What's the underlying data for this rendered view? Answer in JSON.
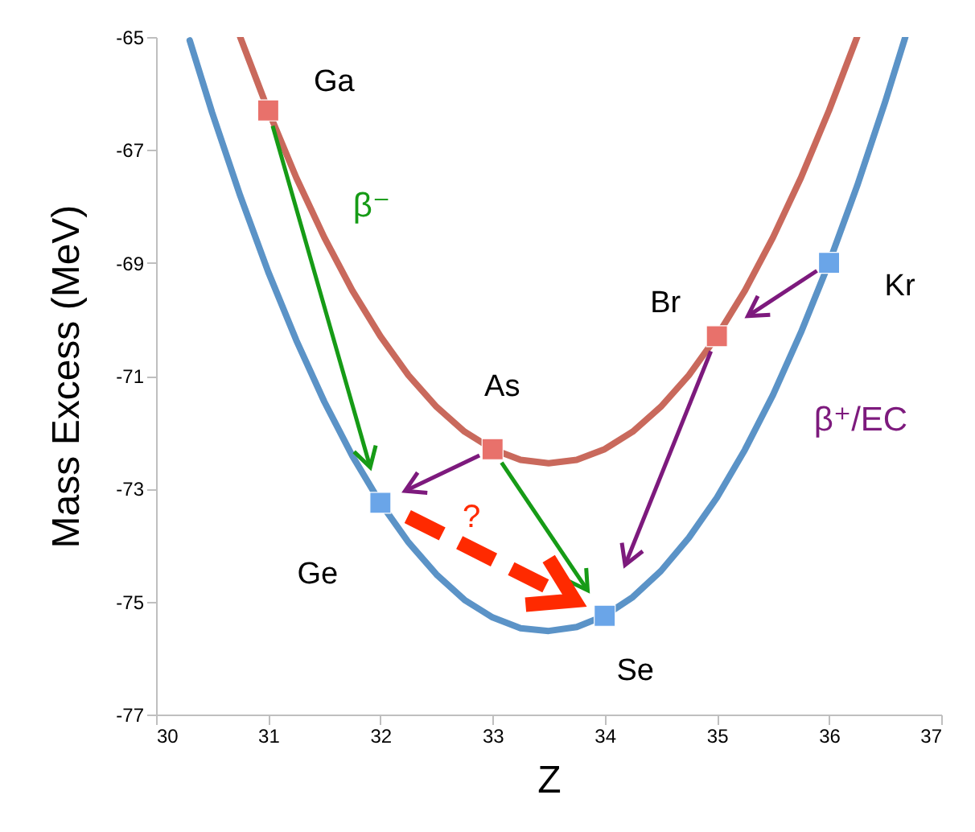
{
  "chart_data": {
    "type": "line",
    "xlabel": "Z",
    "ylabel": "Mass Excess (MeV)",
    "xlim": [
      30,
      37
    ],
    "xticks": [
      30,
      31,
      32,
      33,
      34,
      35,
      36,
      37
    ],
    "ylim": [
      -77,
      -65
    ],
    "yticks": [
      -77,
      -75,
      -73,
      -71,
      -69,
      -67,
      -65
    ],
    "series": [
      {
        "type": "line",
        "color": "#c9695c",
        "x": [
          30.75,
          31,
          31.25,
          31.5,
          31.75,
          32,
          32.25,
          32.5,
          32.75,
          33,
          33.25,
          33.5,
          33.75,
          34,
          34.25,
          34.5,
          34.75,
          35,
          35.25,
          35.5,
          35.75,
          36,
          36.25
        ],
        "values": [
          -65.0,
          -66.3,
          -67.49,
          -68.55,
          -69.49,
          -70.3,
          -70.99,
          -71.55,
          -71.99,
          -72.3,
          -72.49,
          -72.55,
          -72.49,
          -72.3,
          -71.99,
          -71.55,
          -70.99,
          -70.3,
          -69.49,
          -68.55,
          -67.49,
          -66.3,
          -65.0
        ]
      },
      {
        "type": "line",
        "color": "#5b93c7",
        "x": [
          30.3,
          30.5,
          30.75,
          31,
          31.25,
          31.5,
          31.75,
          32,
          32.25,
          32.5,
          32.75,
          33,
          33.25,
          33.5,
          33.75,
          34,
          34.25,
          34.5,
          34.75,
          35,
          35.25,
          35.5,
          35.75,
          36,
          36.25,
          36.5,
          36.68
        ],
        "values": [
          -65.06,
          -66.34,
          -67.81,
          -69.16,
          -70.37,
          -71.46,
          -72.42,
          -73.25,
          -73.95,
          -74.52,
          -74.97,
          -75.28,
          -75.47,
          -75.52,
          -75.45,
          -75.25,
          -74.92,
          -74.46,
          -73.87,
          -73.16,
          -72.31,
          -71.34,
          -70.23,
          -69.0,
          -67.64,
          -66.15,
          -65.0
        ]
      },
      {
        "type": "scatter",
        "marker": "square",
        "color": "#e8716b",
        "x": [
          31,
          33,
          35
        ],
        "values": [
          -66.3,
          -72.3,
          -70.3
        ]
      },
      {
        "type": "scatter",
        "marker": "square",
        "color": "#6aa5e8",
        "x": [
          32,
          34,
          36
        ],
        "values": [
          -73.25,
          -75.25,
          -69.0
        ]
      }
    ],
    "annotations": [
      {
        "text": "Ga",
        "x": 31,
        "y": -66.3
      },
      {
        "text": "Ge",
        "x": 32,
        "y": -73.25
      },
      {
        "text": "As",
        "x": 33,
        "y": -72.3
      },
      {
        "text": "Se",
        "x": 34,
        "y": -75.25
      },
      {
        "text": "Br",
        "x": 35,
        "y": -70.3
      },
      {
        "text": "Kr",
        "x": 36,
        "y": -69.0
      },
      "β⁻",
      "β⁺/EC",
      "?"
    ]
  }
}
